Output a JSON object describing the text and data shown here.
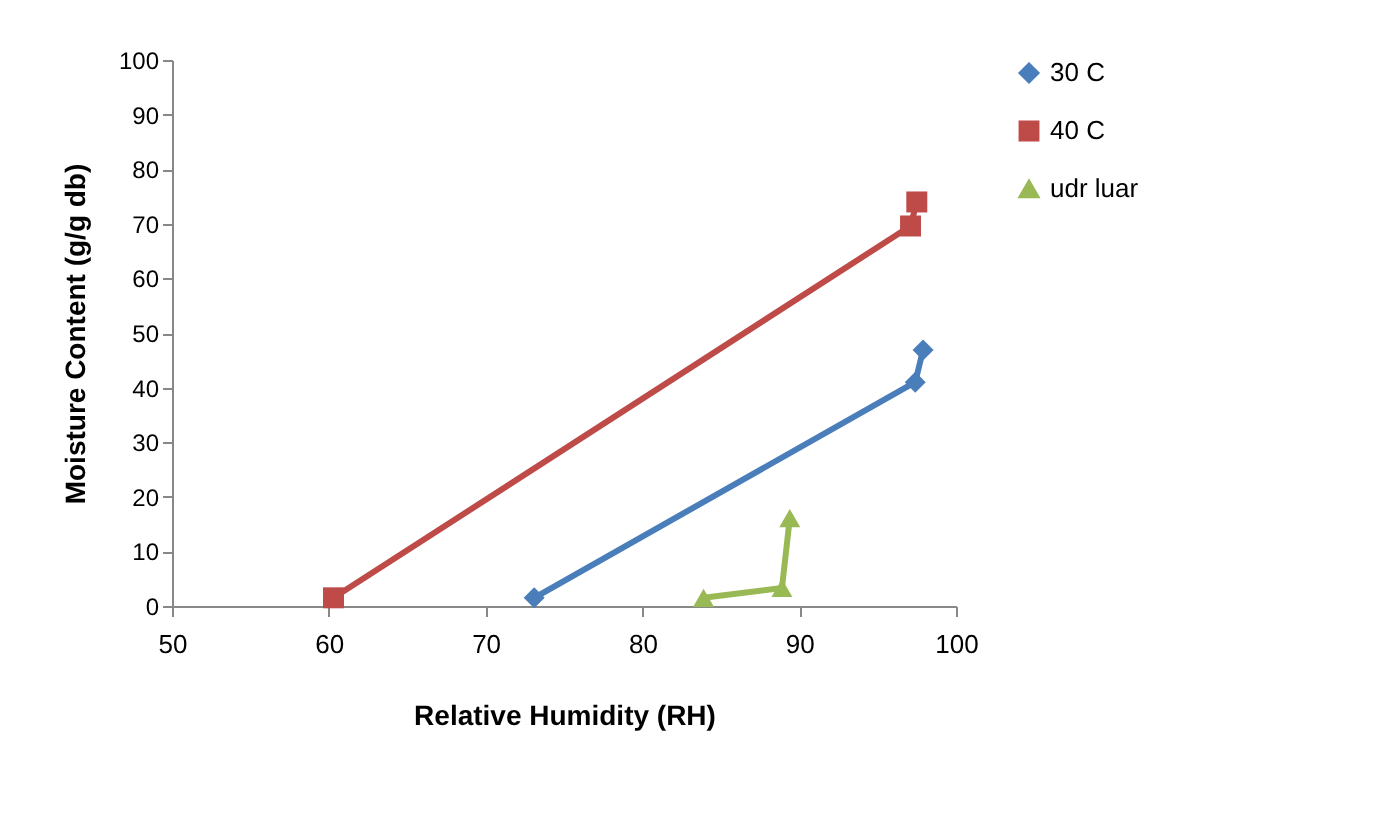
{
  "chart_data": {
    "type": "line",
    "xlabel": "Relative Humidity (RH)",
    "ylabel": "Moisture Content (g/g db)",
    "xlim": [
      50,
      100
    ],
    "xticks": [
      50,
      60,
      70,
      80,
      90,
      100
    ],
    "ylim": [
      0,
      100
    ],
    "yticks": [
      0,
      10,
      20,
      30,
      40,
      50,
      60,
      70,
      80,
      90,
      100
    ],
    "legend": "right",
    "series": [
      {
        "name": "30 C",
        "color": "#4a7ebb",
        "marker": "diamond",
        "x": [
          73.1,
          97.4,
          97.9
        ],
        "values": [
          1.5,
          41,
          46.9
        ]
      },
      {
        "name": "40 C",
        "color": "#be4b48",
        "marker": "square",
        "x": [
          60.3,
          97.1,
          97.5
        ],
        "values": [
          1.5,
          69.6,
          74
        ]
      },
      {
        "name": "udr luar",
        "color": "#98b954",
        "marker": "triangle",
        "x": [
          83.9,
          88.9,
          89.4
        ],
        "values": [
          1.5,
          3.3,
          16.1
        ]
      }
    ]
  }
}
